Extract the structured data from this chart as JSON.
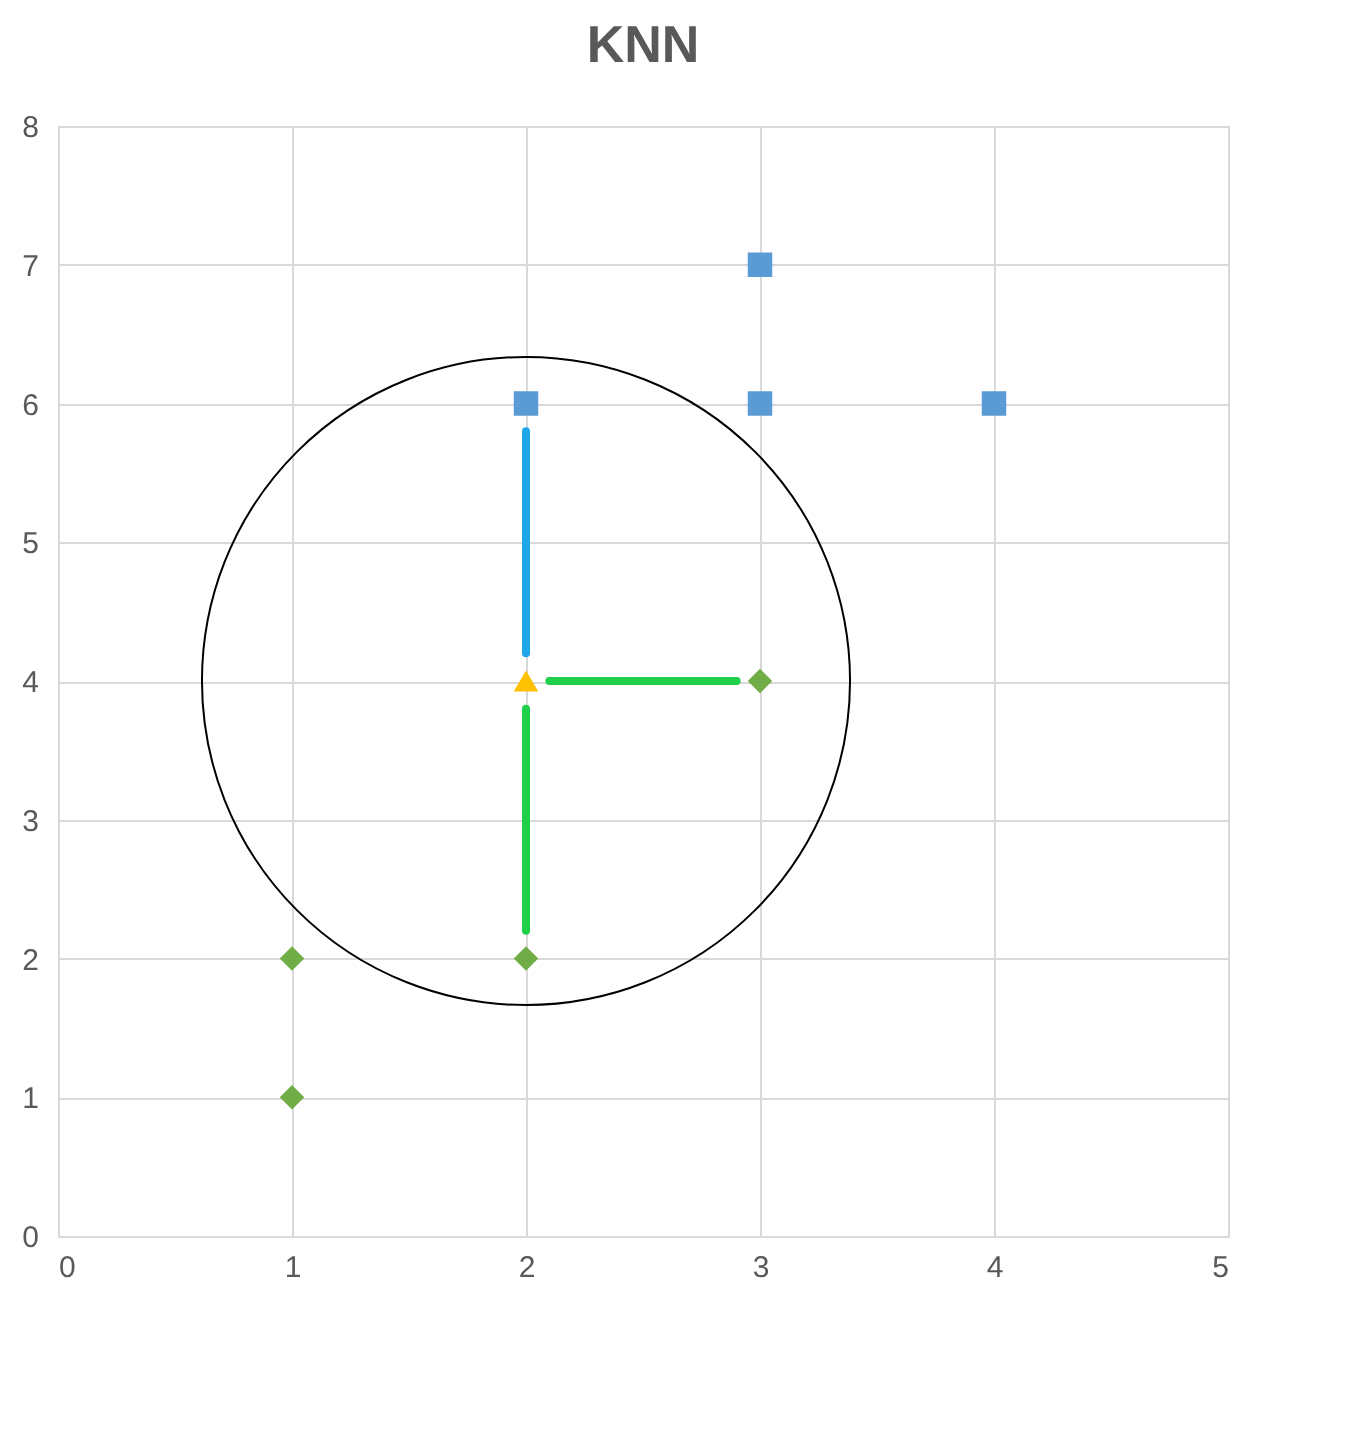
{
  "chart_data": {
    "type": "scatter",
    "title": "KNN",
    "xlim": [
      0,
      5
    ],
    "xticks": [
      0,
      1,
      2,
      3,
      4,
      5
    ],
    "ylim": [
      0,
      8
    ],
    "yticks": [
      0,
      1,
      2,
      3,
      4,
      5,
      6,
      7,
      8
    ],
    "grid": true,
    "series": [
      {
        "type": "line",
        "color": "#1ea7e8",
        "x": [
          2,
          2
        ],
        "values": [
          4.2,
          5.8
        ]
      },
      {
        "type": "line",
        "color": "#1fd04a",
        "x": [
          2.1,
          2.9
        ],
        "values": [
          4,
          4
        ]
      },
      {
        "type": "line",
        "color": "#1fd04a",
        "x": [
          2,
          2
        ],
        "values": [
          3.8,
          2.2
        ]
      },
      {
        "marker": "square",
        "color": "#5b9bd5",
        "x": [
          2,
          3,
          3,
          4
        ],
        "values": [
          6,
          7,
          6,
          6
        ]
      },
      {
        "marker": "diamond",
        "color": "#70ad47",
        "x": [
          1,
          1,
          2,
          3
        ],
        "values": [
          2,
          1,
          2,
          4
        ]
      },
      {
        "marker": "triangle",
        "color": "#ffc000",
        "x": [
          2
        ],
        "values": [
          4
        ]
      }
    ]
  }
}
